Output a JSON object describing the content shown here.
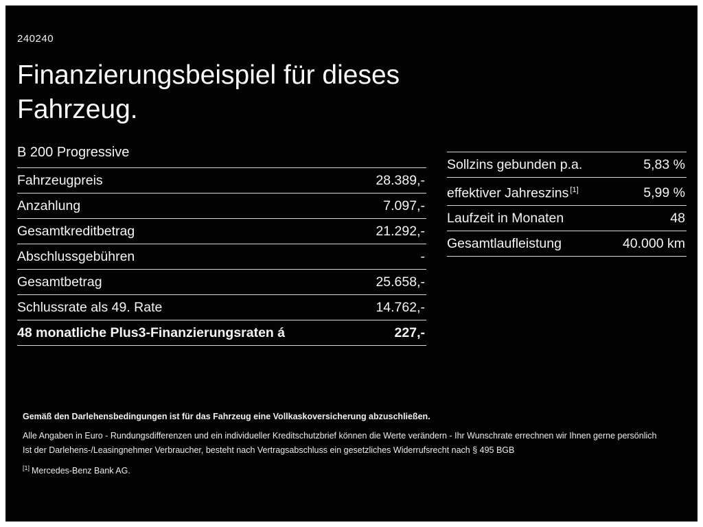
{
  "page": {
    "code": "240240",
    "title_line1": "Finanzierungsbeispiel für dieses",
    "title_line2": "Fahrzeug.",
    "model": "B 200 Progressive"
  },
  "colors": {
    "background": "#030303",
    "frame": "#ffffff",
    "text": "#f5f5f5",
    "divider": "#d9d9d9"
  },
  "left_table": {
    "rows": [
      {
        "label": "Fahrzeugpreis",
        "value": "28.389,-"
      },
      {
        "label": "Anzahlung",
        "value": "7.097,-"
      },
      {
        "label": "Gesamtkreditbetrag",
        "value": "21.292,-"
      },
      {
        "label": "Abschlussgebühren",
        "value": "-"
      },
      {
        "label": "Gesamtbetrag",
        "value": "25.658,-"
      },
      {
        "label": "Schlussrate als 49. Rate",
        "value": "14.762,-"
      },
      {
        "label": "48 monatliche Plus3-Finanzierungsraten á",
        "value": "227,-"
      }
    ]
  },
  "right_table": {
    "rows": [
      {
        "label": "Sollzins gebunden p.a.",
        "sup": "",
        "value": "5,83 %"
      },
      {
        "label": "effektiver Jahreszins",
        "sup": "[1]",
        "value": "5,99 %"
      },
      {
        "label": "Laufzeit in Monaten",
        "sup": "",
        "value": "48"
      },
      {
        "label": "Gesamtlaufleistung",
        "sup": "",
        "value": "40.000 km"
      }
    ]
  },
  "footer": {
    "bold_line": "Gemäß den Darlehensbedingungen ist für das Fahrzeug eine Vollkaskoversicherung abzuschließen.",
    "line2": "Alle Angaben in Euro - Rundungsdifferenzen und ein individueller Kreditschutzbrief können die Werte verändern - Ihr Wunschrate errechnen wir Ihnen gerne persönlich",
    "line3": "Ist der Darlehens-/Leasingnehmer Verbraucher, besteht nach Vertragsabschluss ein gesetzliches Widerrufsrecht nach § 495 BGB",
    "note_ref": "[1]",
    "note_text": "Mercedes-Benz Bank AG."
  }
}
